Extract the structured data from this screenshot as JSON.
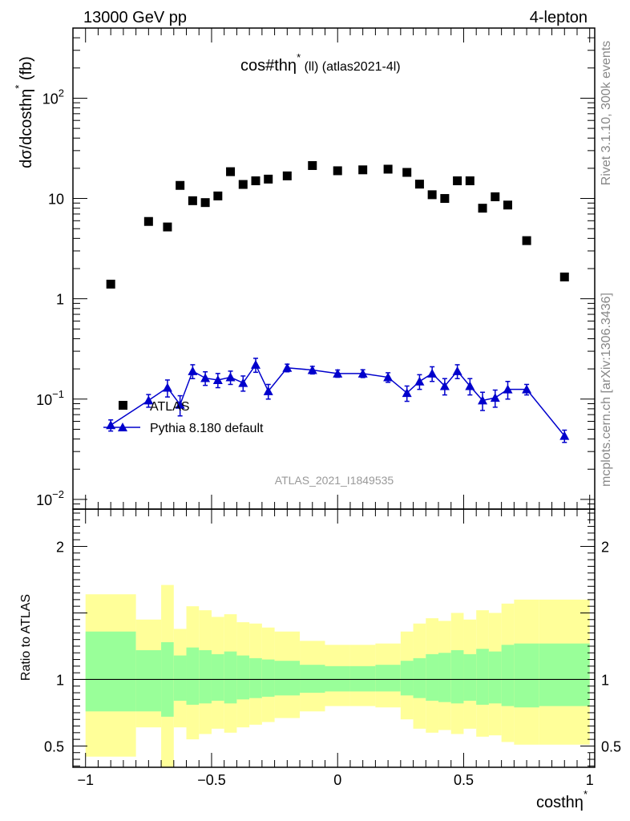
{
  "header": {
    "left": "13000 GeV pp",
    "right": "4-lepton"
  },
  "side_labels": {
    "rivet": "Rivet 3.1.10,  300k events",
    "mcplots": "mcplots.cern.ch [arXiv:1306.3436]"
  },
  "chart_data": [
    {
      "type": "scatter",
      "panel": "main",
      "title": "cos#thη* (ll) (atlas2021-4l)",
      "title_main": "cos#thη",
      "title_sup": "*",
      "title_rest": " (ll) (atlas2021-4l)",
      "ylabel": "dσ/dcosthη* (fb)",
      "ylabel_main": "dσ/dcosthη",
      "ylabel_sup": "*",
      "ylabel_unit": " (fb)",
      "xlim": [
        -1.05,
        1.02
      ],
      "ylim": [
        0.008,
        500
      ],
      "yscale": "log",
      "y_ticks": [
        {
          "value": 0.01,
          "label": "10",
          "sup": "−2"
        },
        {
          "value": 0.1,
          "label": "10",
          "sup": "−1"
        },
        {
          "value": 1,
          "label": "1",
          "sup": ""
        },
        {
          "value": 10,
          "label": "10",
          "sup": ""
        },
        {
          "value": 100,
          "label": "10",
          "sup": "2"
        }
      ],
      "watermark": "ATLAS_2021_I1849535",
      "legend": [
        {
          "name": "ATLAS",
          "marker": "square",
          "color": "#000000"
        },
        {
          "name": "Pythia 8.180 default",
          "marker": "triangle",
          "color": "#0000cc"
        }
      ],
      "legend_placement": "bottom-left",
      "series": [
        {
          "name": "ATLAS",
          "color": "#000000",
          "marker": "square",
          "x": [
            -0.9,
            -0.75,
            -0.675,
            -0.625,
            -0.575,
            -0.525,
            -0.475,
            -0.425,
            -0.375,
            -0.325,
            -0.275,
            -0.2,
            -0.1,
            0.0,
            0.1,
            0.2,
            0.275,
            0.325,
            0.375,
            0.425,
            0.475,
            0.525,
            0.575,
            0.625,
            0.675,
            0.75,
            0.9
          ],
          "y": [
            1.4,
            5.9,
            5.2,
            13.5,
            9.5,
            9.1,
            10.6,
            18.5,
            13.8,
            15.0,
            15.6,
            16.8,
            21.3,
            18.9,
            19.3,
            19.6,
            18.2,
            13.9,
            10.9,
            10.0,
            15.0,
            15.0,
            8.0,
            10.4,
            8.6,
            3.8,
            1.65
          ]
        },
        {
          "name": "Pythia 8.180 default",
          "color": "#0000cc",
          "marker": "triangle",
          "x": [
            -0.9,
            -0.75,
            -0.675,
            -0.625,
            -0.575,
            -0.525,
            -0.475,
            -0.425,
            -0.375,
            -0.325,
            -0.275,
            -0.2,
            -0.1,
            0.0,
            0.1,
            0.2,
            0.275,
            0.325,
            0.375,
            0.425,
            0.475,
            0.525,
            0.575,
            0.625,
            0.675,
            0.75,
            0.9
          ],
          "y": [
            0.055,
            0.097,
            0.13,
            0.088,
            0.19,
            0.162,
            0.155,
            0.165,
            0.145,
            0.22,
            0.12,
            0.205,
            0.195,
            0.18,
            0.18,
            0.165,
            0.115,
            0.15,
            0.18,
            0.135,
            0.19,
            0.135,
            0.097,
            0.103,
            0.125,
            0.125,
            0.043
          ],
          "yerr": [
            0.007,
            0.014,
            0.025,
            0.02,
            0.03,
            0.025,
            0.025,
            0.025,
            0.025,
            0.035,
            0.02,
            0.018,
            0.017,
            0.015,
            0.016,
            0.018,
            0.02,
            0.025,
            0.03,
            0.025,
            0.03,
            0.025,
            0.02,
            0.02,
            0.025,
            0.015,
            0.006
          ]
        }
      ]
    },
    {
      "type": "area",
      "panel": "ratio",
      "ylabel": "Ratio to ATLAS",
      "xlabel": "costhη*",
      "xlabel_main": "costhη",
      "xlabel_sup": "*",
      "xlim": [
        -1.05,
        1.02
      ],
      "ylim": [
        0.34,
        2.28
      ],
      "y_ticks": [
        0.5,
        1,
        2
      ],
      "y_tick_labels": [
        "0.5",
        "1",
        "2"
      ],
      "x_ticks": [
        -1,
        -0.5,
        0,
        0.5,
        1
      ],
      "x_tick_labels": [
        "−1",
        "−0.5",
        "0",
        "0.5",
        "1"
      ],
      "reference_line": 1,
      "band_colors": {
        "inner": "#99ff99",
        "outer": "#ffff99"
      },
      "bins": [
        {
          "lo": -1.0,
          "hi": -0.8,
          "g_lo": 0.76,
          "g_hi": 1.36,
          "y_lo": 0.42,
          "y_hi": 1.64
        },
        {
          "lo": -0.8,
          "hi": -0.7,
          "g_lo": 0.76,
          "g_hi": 1.22,
          "y_lo": 0.64,
          "y_hi": 1.45
        },
        {
          "lo": -0.7,
          "hi": -0.65,
          "g_lo": 0.72,
          "g_hi": 1.28,
          "y_lo": 0.34,
          "y_hi": 1.71
        },
        {
          "lo": -0.65,
          "hi": -0.6,
          "g_lo": 0.84,
          "g_hi": 1.18,
          "y_lo": 0.64,
          "y_hi": 1.38
        },
        {
          "lo": -0.6,
          "hi": -0.55,
          "g_lo": 0.81,
          "g_hi": 1.24,
          "y_lo": 0.55,
          "y_hi": 1.55
        },
        {
          "lo": -0.55,
          "hi": -0.5,
          "g_lo": 0.82,
          "g_hi": 1.22,
          "y_lo": 0.59,
          "y_hi": 1.52
        },
        {
          "lo": -0.5,
          "hi": -0.45,
          "g_lo": 0.84,
          "g_hi": 1.19,
          "y_lo": 0.63,
          "y_hi": 1.47
        },
        {
          "lo": -0.45,
          "hi": -0.4,
          "g_lo": 0.82,
          "g_hi": 1.21,
          "y_lo": 0.6,
          "y_hi": 1.49
        },
        {
          "lo": -0.4,
          "hi": -0.35,
          "g_lo": 0.85,
          "g_hi": 1.18,
          "y_lo": 0.64,
          "y_hi": 1.43
        },
        {
          "lo": -0.35,
          "hi": -0.3,
          "g_lo": 0.86,
          "g_hi": 1.16,
          "y_lo": 0.66,
          "y_hi": 1.42
        },
        {
          "lo": -0.3,
          "hi": -0.25,
          "g_lo": 0.87,
          "g_hi": 1.15,
          "y_lo": 0.68,
          "y_hi": 1.39
        },
        {
          "lo": -0.25,
          "hi": -0.15,
          "g_lo": 0.88,
          "g_hi": 1.14,
          "y_lo": 0.71,
          "y_hi": 1.36
        },
        {
          "lo": -0.15,
          "hi": -0.05,
          "g_lo": 0.9,
          "g_hi": 1.11,
          "y_lo": 0.76,
          "y_hi": 1.29
        },
        {
          "lo": -0.05,
          "hi": 0.05,
          "g_lo": 0.91,
          "g_hi": 1.1,
          "y_lo": 0.8,
          "y_hi": 1.26
        },
        {
          "lo": 0.05,
          "hi": 0.15,
          "g_lo": 0.91,
          "g_hi": 1.1,
          "y_lo": 0.8,
          "y_hi": 1.26
        },
        {
          "lo": 0.15,
          "hi": 0.25,
          "g_lo": 0.91,
          "g_hi": 1.11,
          "y_lo": 0.79,
          "y_hi": 1.27
        },
        {
          "lo": 0.25,
          "hi": 0.3,
          "g_lo": 0.88,
          "g_hi": 1.14,
          "y_lo": 0.7,
          "y_hi": 1.36
        },
        {
          "lo": 0.3,
          "hi": 0.35,
          "g_lo": 0.86,
          "g_hi": 1.16,
          "y_lo": 0.63,
          "y_hi": 1.42
        },
        {
          "lo": 0.35,
          "hi": 0.4,
          "g_lo": 0.84,
          "g_hi": 1.19,
          "y_lo": 0.6,
          "y_hi": 1.46
        },
        {
          "lo": 0.4,
          "hi": 0.45,
          "g_lo": 0.83,
          "g_hi": 1.2,
          "y_lo": 0.62,
          "y_hi": 1.44
        },
        {
          "lo": 0.45,
          "hi": 0.5,
          "g_lo": 0.82,
          "g_hi": 1.22,
          "y_lo": 0.59,
          "y_hi": 1.5
        },
        {
          "lo": 0.5,
          "hi": 0.55,
          "g_lo": 0.84,
          "g_hi": 1.19,
          "y_lo": 0.63,
          "y_hi": 1.45
        },
        {
          "lo": 0.55,
          "hi": 0.6,
          "g_lo": 0.81,
          "g_hi": 1.23,
          "y_lo": 0.57,
          "y_hi": 1.52
        },
        {
          "lo": 0.6,
          "hi": 0.65,
          "g_lo": 0.82,
          "g_hi": 1.21,
          "y_lo": 0.58,
          "y_hi": 1.5
        },
        {
          "lo": 0.65,
          "hi": 0.7,
          "g_lo": 0.8,
          "g_hi": 1.26,
          "y_lo": 0.53,
          "y_hi": 1.57
        },
        {
          "lo": 0.7,
          "hi": 0.8,
          "g_lo": 0.79,
          "g_hi": 1.27,
          "y_lo": 0.51,
          "y_hi": 1.6
        },
        {
          "lo": 0.8,
          "hi": 1.0,
          "g_lo": 0.8,
          "g_hi": 1.27,
          "y_lo": 0.51,
          "y_hi": 1.6
        }
      ]
    }
  ]
}
